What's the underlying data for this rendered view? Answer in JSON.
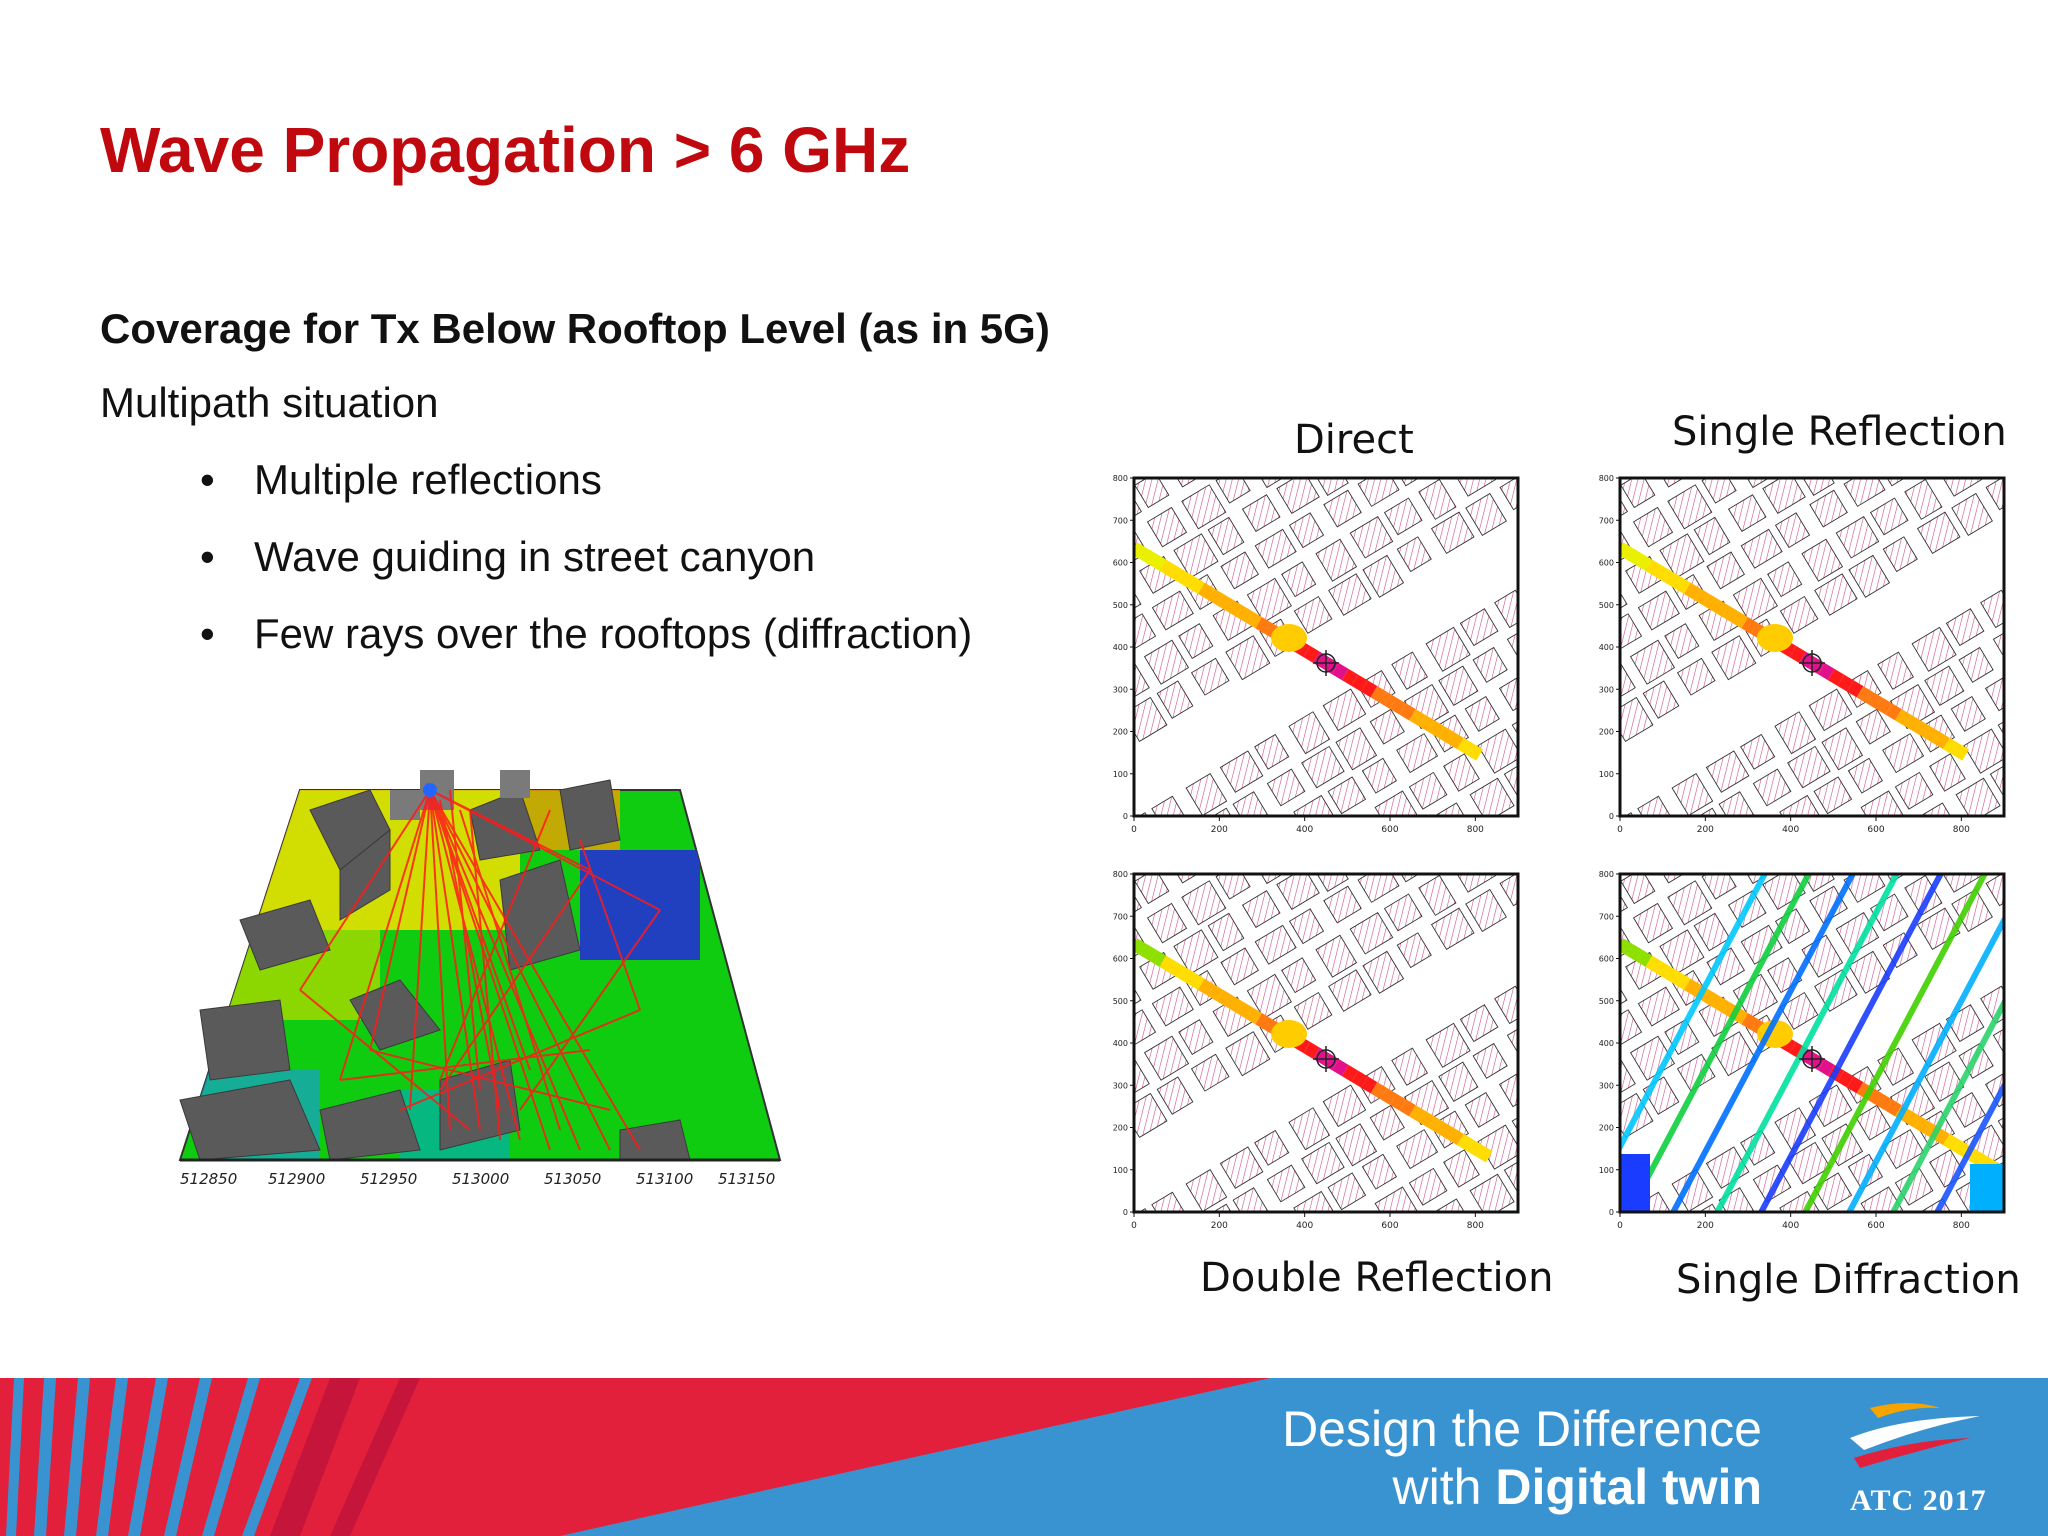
{
  "slide": {
    "title": "Wave Propagation > 6 GHz",
    "subtitle": "Coverage for Tx Below Rooftop Level (as in 5G)",
    "intro": "Multipath situation",
    "bullets": [
      "Multiple reflections",
      "Wave guiding in street canyon",
      "Few rays over the rooftops (diffraction)"
    ]
  },
  "city_view": {
    "x_ticks": [
      "512850",
      "512900",
      "512950",
      "513000",
      "513050",
      "513100",
      "513150"
    ],
    "colors": {
      "rays": "#ff1a1a",
      "buildings": "#555555",
      "ground_high": "#00cc00",
      "ground_mid": "#ffee00",
      "ground_low": "#0033cc"
    }
  },
  "coverage_plots": [
    {
      "label": "Direct",
      "x_ticks": [
        "0",
        "200",
        "400",
        "600",
        "800"
      ],
      "y_ticks": [
        "0",
        "100",
        "200",
        "300",
        "400",
        "500",
        "600",
        "700",
        "800"
      ]
    },
    {
      "label": "Single Reflection",
      "x_ticks": [
        "0",
        "200",
        "400",
        "600",
        "800"
      ],
      "y_ticks": [
        "0",
        "100",
        "200",
        "300",
        "400",
        "500",
        "600",
        "700",
        "800"
      ]
    },
    {
      "label": "Double Reflection",
      "x_ticks": [
        "0",
        "200",
        "400",
        "600",
        "800"
      ],
      "y_ticks": [
        "0",
        "100",
        "200",
        "300",
        "400",
        "500",
        "600",
        "700",
        "800"
      ]
    },
    {
      "label": "Single Diffraction",
      "x_ticks": [
        "0",
        "200",
        "400",
        "600",
        "800"
      ],
      "y_ticks": [
        "0",
        "100",
        "200",
        "300",
        "400",
        "500",
        "600",
        "700",
        "800"
      ]
    }
  ],
  "footer": {
    "tagline_line1": "Design the Difference",
    "tagline_line2_prefix": "with ",
    "tagline_line2_bold": "Digital twin",
    "logo_text": "ATC 2017",
    "colors": {
      "red": "#e2203b",
      "blue": "#3a93d1"
    }
  }
}
